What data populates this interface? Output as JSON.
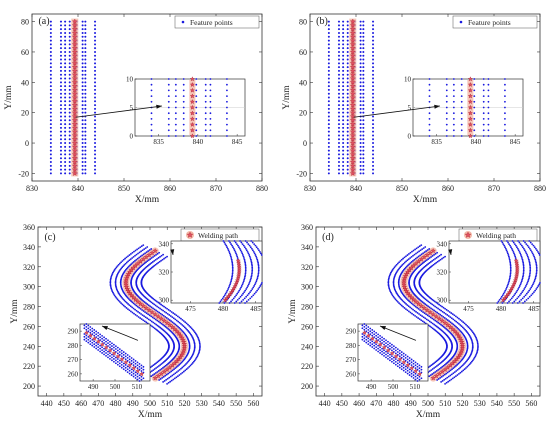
{
  "chart_data": [
    {
      "panel": "(a)",
      "type": "scatter",
      "xlabel": "X/mm",
      "ylabel": "Y/mm",
      "xlim": [
        830,
        880
      ],
      "ylim": [
        -25,
        85
      ],
      "xticks": [
        830,
        840,
        850,
        860,
        870,
        880
      ],
      "yticks": [
        -20,
        0,
        20,
        40,
        60,
        80
      ],
      "legend": {
        "label": "Feature points",
        "position": "top-right"
      },
      "series": [
        {
          "name": "Feature points",
          "style": "points",
          "x": [
            834.1,
            836.3,
            837.2,
            838.2,
            839.8,
            841.0,
            841.6,
            843.7
          ],
          "y_range": [
            -20,
            80
          ],
          "step": 2.5
        },
        {
          "style": "weld-star",
          "x": [
            839.3
          ],
          "y_range": [
            -20,
            80
          ],
          "step": 2.5
        }
      ],
      "inset": {
        "xlim": [
          832,
          846
        ],
        "ylim": [
          0,
          10
        ],
        "xticks": [
          835,
          840,
          845
        ],
        "yticks": [
          0,
          5,
          10
        ],
        "point_x": [
          834.1,
          836.3,
          837.2,
          838.2,
          839.8,
          841.0,
          841.6,
          843.7
        ],
        "weld_x": 839.3,
        "step": 1
      }
    },
    {
      "panel": "(b)",
      "type": "scatter",
      "xlabel": "X/mm",
      "ylabel": "Y/mm",
      "xlim": [
        830,
        880
      ],
      "ylim": [
        -25,
        85
      ],
      "xticks": [
        830,
        840,
        850,
        860,
        870,
        880
      ],
      "yticks": [
        -20,
        0,
        20,
        40,
        60,
        80
      ],
      "legend": {
        "label": "Feature points",
        "position": "top-right"
      },
      "series": [
        {
          "name": "Feature points",
          "style": "points",
          "x": [
            834.1,
            836.3,
            837.2,
            838.2,
            839.8,
            841.0,
            841.6,
            843.7
          ],
          "y_range": [
            -20,
            80
          ],
          "step": 2.5
        },
        {
          "style": "weld-star",
          "x": [
            839.3
          ],
          "y_range": [
            -20,
            80
          ],
          "step": 2.5
        }
      ],
      "inset": {
        "xlim": [
          832,
          846
        ],
        "ylim": [
          0,
          10
        ],
        "xticks": [
          835,
          840,
          845
        ],
        "yticks": [
          0,
          5,
          10
        ],
        "point_x": [
          834.1,
          836.3,
          837.2,
          838.2,
          839.8,
          841.0,
          841.6,
          843.7
        ],
        "weld_x": 839.3,
        "step": 1
      }
    },
    {
      "panel": "(c)",
      "type": "scatter",
      "xlabel": "X/mm",
      "ylabel": "Y/mm",
      "xlim": [
        435,
        565
      ],
      "ylim": [
        190,
        360
      ],
      "xticks": [
        440,
        450,
        460,
        470,
        480,
        490,
        500,
        510,
        520,
        530,
        540,
        550,
        560
      ],
      "yticks": [
        200,
        220,
        240,
        260,
        280,
        300,
        320,
        340,
        360
      ],
      "legend": {
        "label": "Welding path",
        "position": "top-right"
      },
      "curve": {
        "center_x": 503,
        "center_y": 272,
        "amplitude": 17,
        "half_span": 64,
        "offsets": [
          -9,
          -6,
          -3,
          3,
          6,
          9
        ]
      },
      "inset_top": {
        "xlim": [
          472,
          486
        ],
        "ylim": [
          298,
          342
        ],
        "xticks": [
          475,
          480,
          485
        ],
        "yticks": [
          300,
          320,
          340
        ]
      },
      "inset_bottom": {
        "xlim": [
          484,
          516
        ],
        "ylim": [
          255,
          295
        ],
        "xticks": [
          490,
          500,
          510
        ],
        "yticks": [
          260,
          270,
          280,
          290
        ]
      }
    },
    {
      "panel": "(d)",
      "type": "scatter",
      "xlabel": "X/mm",
      "ylabel": "Y/mm",
      "xlim": [
        435,
        565
      ],
      "ylim": [
        190,
        360
      ],
      "xticks": [
        440,
        450,
        460,
        470,
        480,
        490,
        500,
        510,
        520,
        530,
        540,
        550,
        560
      ],
      "yticks": [
        200,
        220,
        240,
        260,
        280,
        300,
        320,
        340,
        360
      ],
      "legend": {
        "label": "Welding path",
        "position": "top-right"
      },
      "curve": {
        "center_x": 503,
        "center_y": 272,
        "amplitude": 17,
        "half_span": 64,
        "offsets": [
          -9,
          -6,
          -3,
          3,
          6,
          9
        ]
      },
      "inset_top": {
        "xlim": [
          472,
          486
        ],
        "ylim": [
          298,
          342
        ],
        "xticks": [
          475,
          480,
          485
        ],
        "yticks": [
          300,
          320,
          340
        ]
      },
      "inset_bottom": {
        "xlim": [
          484,
          516
        ],
        "ylim": [
          255,
          295
        ],
        "xticks": [
          490,
          500,
          510
        ],
        "yticks": [
          260,
          270,
          280,
          290
        ]
      }
    }
  ],
  "colors": {
    "points": "#1a1adf",
    "weld_fill": "#e05060",
    "weld_halo": "#f4b8a8",
    "axis": "#333333"
  }
}
